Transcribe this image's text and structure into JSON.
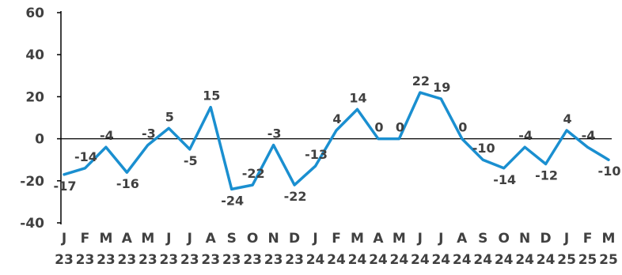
{
  "chart_data": {
    "type": "line",
    "title": "",
    "xlabel": "",
    "ylabel": "",
    "ylim": [
      -40,
      60
    ],
    "yticks": [
      60,
      40,
      20,
      0,
      -20,
      -40
    ],
    "grid": false,
    "legend": "none",
    "line_color": "#1a8fd0",
    "categories": [
      {
        "month": "J",
        "year": "23"
      },
      {
        "month": "F",
        "year": "23"
      },
      {
        "month": "M",
        "year": "23"
      },
      {
        "month": "A",
        "year": "23"
      },
      {
        "month": "M",
        "year": "23"
      },
      {
        "month": "J",
        "year": "23"
      },
      {
        "month": "J",
        "year": "23"
      },
      {
        "month": "A",
        "year": "23"
      },
      {
        "month": "S",
        "year": "23"
      },
      {
        "month": "O",
        "year": "23"
      },
      {
        "month": "N",
        "year": "23"
      },
      {
        "month": "D",
        "year": "23"
      },
      {
        "month": "J",
        "year": "24"
      },
      {
        "month": "F",
        "year": "24"
      },
      {
        "month": "M",
        "year": "24"
      },
      {
        "month": "A",
        "year": "24"
      },
      {
        "month": "M",
        "year": "24"
      },
      {
        "month": "J",
        "year": "24"
      },
      {
        "month": "J",
        "year": "24"
      },
      {
        "month": "A",
        "year": "24"
      },
      {
        "month": "S",
        "year": "24"
      },
      {
        "month": "O",
        "year": "24"
      },
      {
        "month": "N",
        "year": "24"
      },
      {
        "month": "D",
        "year": "24"
      },
      {
        "month": "J",
        "year": "25"
      },
      {
        "month": "F",
        "year": "25"
      },
      {
        "month": "M",
        "year": "25"
      }
    ],
    "values": [
      -17,
      -14,
      -4,
      -16,
      -3,
      5,
      -5,
      15,
      -24,
      -22,
      -3,
      -22,
      -13,
      4,
      14,
      0,
      0,
      22,
      19,
      0,
      -10,
      -14,
      -4,
      -12,
      4,
      -4,
      -10
    ],
    "data_labels": [
      "-17",
      "-14",
      "-4",
      "-16",
      "-3",
      "5",
      "-5",
      "15",
      "-24",
      "-22",
      "-3",
      "-22",
      "-13",
      "4",
      "14",
      "0",
      "0",
      "22",
      "19",
      "0",
      "-10",
      "-14",
      "-4",
      "-12",
      "4",
      "-4",
      "-10"
    ]
  }
}
